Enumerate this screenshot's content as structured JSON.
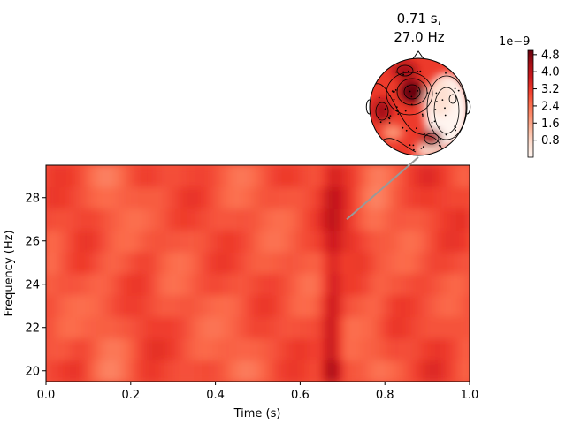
{
  "chart_data": [
    {
      "type": "heatmap",
      "xlabel": "Time (s)",
      "ylabel": "Frequency (Hz)",
      "xlim": [
        0.0,
        1.0
      ],
      "ylim": [
        19.5,
        29.5
      ],
      "x_ticks": [
        0.0,
        0.2,
        0.4,
        0.6,
        0.8,
        1.0
      ],
      "x_tick_labels": [
        "0.0",
        "0.2",
        "0.4",
        "0.6",
        "0.8",
        "1.0"
      ],
      "y_ticks": [
        20,
        22,
        24,
        26,
        28
      ],
      "y_tick_labels": [
        "20",
        "22",
        "24",
        "26",
        "28"
      ],
      "frequencies": [
        20,
        21,
        22,
        23,
        24,
        25,
        26,
        27,
        28,
        29
      ],
      "colormap": "Reds",
      "marker": {
        "time": 0.71,
        "frequency": 27.0,
        "line_color": "#999999"
      }
    },
    {
      "type": "topomap",
      "title_line1": "0.71 s,",
      "title_line2": "27.0 Hz",
      "time": 0.71,
      "frequency": 27.0,
      "colormap": "Reds"
    }
  ],
  "colorbar": {
    "multiplier": "1e−9",
    "ticks": [
      0.8,
      1.6,
      2.4,
      3.2,
      4.0,
      4.8
    ],
    "tick_labels": [
      "0.8",
      "1.6",
      "2.4",
      "3.2",
      "4.0",
      "4.8"
    ],
    "vmin": 0.0,
    "vmax": 5.0,
    "colormap": "Reds"
  },
  "colors": {
    "reds_light": "#fff5f0",
    "reds_mid": "#fb6a4a",
    "reds_dark": "#67000d"
  }
}
